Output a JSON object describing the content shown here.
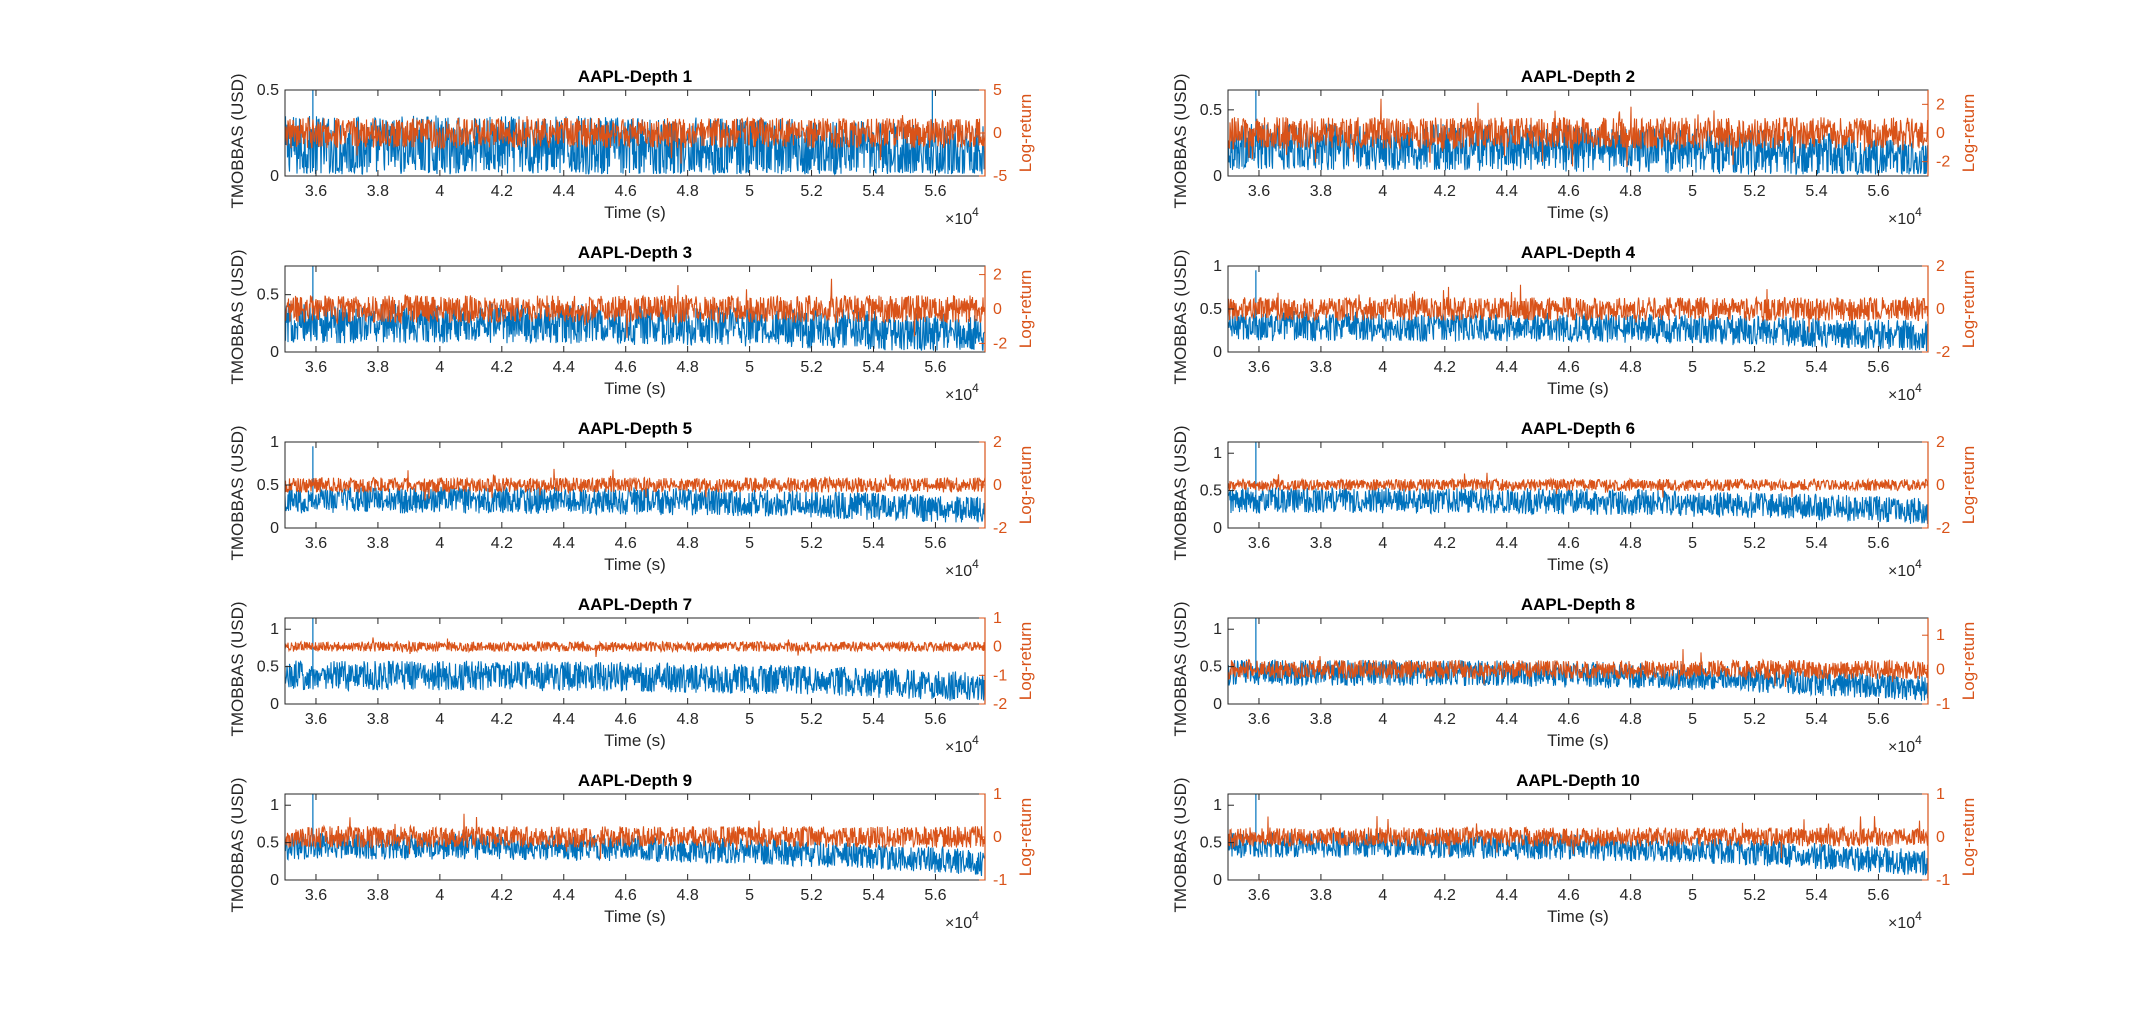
{
  "figure": {
    "layout": "5 rows x 2 columns of dual-axis time-series panels"
  },
  "colors": {
    "left_series": "#0072BD",
    "right_series": "#D95319",
    "axis": "#262626"
  },
  "chart_data": [
    {
      "type": "line",
      "title": "AAPL-Depth 1",
      "xlabel": "Time (s)",
      "ylabel_left": "TMOBBAS (USD)",
      "ylabel_right": "Log-return",
      "xlim": [
        35000,
        57600
      ],
      "x_ticks": [
        36000,
        38000,
        40000,
        42000,
        44000,
        46000,
        48000,
        50000,
        52000,
        54000,
        56000
      ],
      "x_tick_labels": [
        "3.6",
        "3.8",
        "4",
        "4.2",
        "4.4",
        "4.6",
        "4.8",
        "5",
        "5.2",
        "5.4",
        "5.6"
      ],
      "x_exponent_base": "×10",
      "x_exponent_power": "4",
      "y_left_lim": [
        0,
        0.5
      ],
      "y_left_ticks": [
        0,
        0.5
      ],
      "y_left_tick_labels": [
        "0",
        "0.5"
      ],
      "y_right_lim": [
        -5,
        5
      ],
      "y_right_ticks": [
        -5,
        0,
        5
      ],
      "y_right_tick_labels": [
        "-5",
        "0",
        "5"
      ],
      "series": [
        {
          "name": "TMOBBAS (USD)",
          "axis": "left",
          "center_start": 0.17,
          "center_end": 0.11,
          "spread": 0.23,
          "spike_x": [
            35900,
            55900
          ],
          "spike_y": [
            0.5,
            0.5
          ]
        },
        {
          "name": "Log-return",
          "axis": "right",
          "center": 0.0,
          "spread": 3.5
        }
      ]
    },
    {
      "type": "line",
      "title": "AAPL-Depth 2",
      "xlabel": "Time (s)",
      "ylabel_left": "TMOBBAS (USD)",
      "ylabel_right": "Log-return",
      "xlim": [
        35000,
        57600
      ],
      "x_ticks": [
        36000,
        38000,
        40000,
        42000,
        44000,
        46000,
        48000,
        50000,
        52000,
        54000,
        56000
      ],
      "x_tick_labels": [
        "3.6",
        "3.8",
        "4",
        "4.2",
        "4.4",
        "4.6",
        "4.8",
        "5",
        "5.2",
        "5.4",
        "5.6"
      ],
      "x_exponent_base": "×10",
      "x_exponent_power": "4",
      "y_left_lim": [
        0,
        0.65
      ],
      "y_left_ticks": [
        0,
        0.5
      ],
      "y_left_tick_labels": [
        "0",
        "0.5"
      ],
      "y_right_lim": [
        -3,
        3
      ],
      "y_right_ticks": [
        -2,
        0,
        2
      ],
      "y_right_tick_labels": [
        "-2",
        "0",
        "2"
      ],
      "series": [
        {
          "name": "TMOBBAS (USD)",
          "axis": "left",
          "center_start": 0.22,
          "center_end": 0.12,
          "spread": 0.22,
          "spike_x": [
            35900
          ],
          "spike_y": [
            0.65
          ]
        },
        {
          "name": "Log-return",
          "axis": "right",
          "center": 0.0,
          "spread": 2.2
        }
      ]
    },
    {
      "type": "line",
      "title": "AAPL-Depth 3",
      "xlabel": "Time (s)",
      "ylabel_left": "TMOBBAS (USD)",
      "ylabel_right": "Log-return",
      "xlim": [
        35000,
        57600
      ],
      "x_ticks": [
        36000,
        38000,
        40000,
        42000,
        44000,
        46000,
        48000,
        50000,
        52000,
        54000,
        56000
      ],
      "x_tick_labels": [
        "3.6",
        "3.8",
        "4",
        "4.2",
        "4.4",
        "4.6",
        "4.8",
        "5",
        "5.2",
        "5.4",
        "5.6"
      ],
      "x_exponent_base": "×10",
      "x_exponent_power": "4",
      "y_left_lim": [
        0,
        0.75
      ],
      "y_left_ticks": [
        0,
        0.5
      ],
      "y_left_tick_labels": [
        "0",
        "0.5"
      ],
      "y_right_lim": [
        -2.5,
        2.5
      ],
      "y_right_ticks": [
        -2,
        0,
        2
      ],
      "y_right_tick_labels": [
        "-2",
        "0",
        "2"
      ],
      "series": [
        {
          "name": "TMOBBAS (USD)",
          "axis": "left",
          "center_start": 0.25,
          "center_end": 0.15,
          "spread": 0.22,
          "spike_x": [
            35900
          ],
          "spike_y": [
            0.75
          ]
        },
        {
          "name": "Log-return",
          "axis": "right",
          "center": 0.0,
          "spread": 1.6
        }
      ]
    },
    {
      "type": "line",
      "title": "AAPL-Depth 4",
      "xlabel": "Time (s)",
      "ylabel_left": "TMOBBAS (USD)",
      "ylabel_right": "Log-return",
      "xlim": [
        35000,
        57600
      ],
      "x_ticks": [
        36000,
        38000,
        40000,
        42000,
        44000,
        46000,
        48000,
        50000,
        52000,
        54000,
        56000
      ],
      "x_tick_labels": [
        "3.6",
        "3.8",
        "4",
        "4.2",
        "4.4",
        "4.6",
        "4.8",
        "5",
        "5.2",
        "5.4",
        "5.6"
      ],
      "x_exponent_base": "×10",
      "x_exponent_power": "4",
      "y_left_lim": [
        0,
        1
      ],
      "y_left_ticks": [
        0,
        0.5,
        1
      ],
      "y_left_tick_labels": [
        "0",
        "0.5",
        "1"
      ],
      "y_right_lim": [
        -2,
        2
      ],
      "y_right_ticks": [
        -2,
        0,
        2
      ],
      "y_right_tick_labels": [
        "-2",
        "0",
        "2"
      ],
      "series": [
        {
          "name": "TMOBBAS (USD)",
          "axis": "left",
          "center_start": 0.3,
          "center_end": 0.18,
          "spread": 0.22,
          "spike_x": [
            35900
          ],
          "spike_y": [
            0.95
          ]
        },
        {
          "name": "Log-return",
          "axis": "right",
          "center": 0.0,
          "spread": 1.1
        }
      ]
    },
    {
      "type": "line",
      "title": "AAPL-Depth 5",
      "xlabel": "Time (s)",
      "ylabel_left": "TMOBBAS (USD)",
      "ylabel_right": "Log-return",
      "xlim": [
        35000,
        57600
      ],
      "x_ticks": [
        36000,
        38000,
        40000,
        42000,
        44000,
        46000,
        48000,
        50000,
        52000,
        54000,
        56000
      ],
      "x_tick_labels": [
        "3.6",
        "3.8",
        "4",
        "4.2",
        "4.4",
        "4.6",
        "4.8",
        "5",
        "5.2",
        "5.4",
        "5.6"
      ],
      "x_exponent_base": "×10",
      "x_exponent_power": "4",
      "y_left_lim": [
        0,
        1
      ],
      "y_left_ticks": [
        0,
        0.5,
        1
      ],
      "y_left_tick_labels": [
        "0",
        "0.5",
        "1"
      ],
      "y_right_lim": [
        -2,
        2
      ],
      "y_right_ticks": [
        -2,
        0,
        2
      ],
      "y_right_tick_labels": [
        "-2",
        "0",
        "2"
      ],
      "series": [
        {
          "name": "TMOBBAS (USD)",
          "axis": "left",
          "center_start": 0.33,
          "center_end": 0.2,
          "spread": 0.2,
          "spike_x": [
            35900
          ],
          "spike_y": [
            0.95
          ]
        },
        {
          "name": "Log-return",
          "axis": "right",
          "center": 0.0,
          "spread": 0.7
        }
      ]
    },
    {
      "type": "line",
      "title": "AAPL-Depth 6",
      "xlabel": "Time (s)",
      "ylabel_left": "TMOBBAS (USD)",
      "ylabel_right": "Log-return",
      "xlim": [
        35000,
        57600
      ],
      "x_ticks": [
        36000,
        38000,
        40000,
        42000,
        44000,
        46000,
        48000,
        50000,
        52000,
        54000,
        56000
      ],
      "x_tick_labels": [
        "3.6",
        "3.8",
        "4",
        "4.2",
        "4.4",
        "4.6",
        "4.8",
        "5",
        "5.2",
        "5.4",
        "5.6"
      ],
      "x_exponent_base": "×10",
      "x_exponent_power": "4",
      "y_left_lim": [
        0,
        1.15
      ],
      "y_left_ticks": [
        0,
        0.5,
        1
      ],
      "y_left_tick_labels": [
        "0",
        "0.5",
        "1"
      ],
      "y_right_lim": [
        -2,
        2
      ],
      "y_right_ticks": [
        -2,
        0,
        2
      ],
      "y_right_tick_labels": [
        "-2",
        "0",
        "2"
      ],
      "series": [
        {
          "name": "TMOBBAS (USD)",
          "axis": "left",
          "center_start": 0.37,
          "center_end": 0.22,
          "spread": 0.22,
          "spike_x": [
            35900
          ],
          "spike_y": [
            1.15
          ]
        },
        {
          "name": "Log-return",
          "axis": "right",
          "center": 0.0,
          "spread": 0.55
        }
      ]
    },
    {
      "type": "line",
      "title": "AAPL-Depth 7",
      "xlabel": "Time (s)",
      "ylabel_left": "TMOBBAS (USD)",
      "ylabel_right": "Log-return",
      "xlim": [
        35000,
        57600
      ],
      "x_ticks": [
        36000,
        38000,
        40000,
        42000,
        44000,
        46000,
        48000,
        50000,
        52000,
        54000,
        56000
      ],
      "x_tick_labels": [
        "3.6",
        "3.8",
        "4",
        "4.2",
        "4.4",
        "4.6",
        "4.8",
        "5",
        "5.2",
        "5.4",
        "5.6"
      ],
      "x_exponent_base": "×10",
      "x_exponent_power": "4",
      "y_left_lim": [
        0,
        1.15
      ],
      "y_left_ticks": [
        0,
        0.5,
        1
      ],
      "y_left_tick_labels": [
        "0",
        "0.5",
        "1"
      ],
      "y_right_lim": [
        -2,
        1
      ],
      "y_right_ticks": [
        -2,
        -1,
        0,
        1
      ],
      "y_right_tick_labels": [
        "-2",
        "-1",
        "0",
        "1"
      ],
      "series": [
        {
          "name": "TMOBBAS (USD)",
          "axis": "left",
          "center_start": 0.38,
          "center_end": 0.22,
          "spread": 0.25,
          "spike_x": [
            35900
          ],
          "spike_y": [
            1.15
          ]
        },
        {
          "name": "Log-return",
          "axis": "right",
          "center": 0.0,
          "spread": 0.35
        }
      ]
    },
    {
      "type": "line",
      "title": "AAPL-Depth 8",
      "xlabel": "Time (s)",
      "ylabel_left": "TMOBBAS (USD)",
      "ylabel_right": "Log-return",
      "xlim": [
        35000,
        57600
      ],
      "x_ticks": [
        36000,
        38000,
        40000,
        42000,
        44000,
        46000,
        48000,
        50000,
        52000,
        54000,
        56000
      ],
      "x_tick_labels": [
        "3.6",
        "3.8",
        "4",
        "4.2",
        "4.4",
        "4.6",
        "4.8",
        "5",
        "5.2",
        "5.4",
        "5.6"
      ],
      "x_exponent_base": "×10",
      "x_exponent_power": "4",
      "y_left_lim": [
        0,
        1.15
      ],
      "y_left_ticks": [
        0,
        0.5,
        1
      ],
      "y_left_tick_labels": [
        "0",
        "0.5",
        "1"
      ],
      "y_right_lim": [
        -1,
        1.5
      ],
      "y_right_ticks": [
        -1,
        0,
        1
      ],
      "y_right_tick_labels": [
        "-1",
        "0",
        "1"
      ],
      "series": [
        {
          "name": "TMOBBAS (USD)",
          "axis": "left",
          "center_start": 0.42,
          "center_end": 0.2,
          "spread": 0.22,
          "spike_x": [
            35900
          ],
          "spike_y": [
            1.15
          ]
        },
        {
          "name": "Log-return",
          "axis": "right",
          "center": 0.0,
          "spread": 0.55
        }
      ]
    },
    {
      "type": "line",
      "title": "AAPL-Depth 9",
      "xlabel": "Time (s)",
      "ylabel_left": "TMOBBAS (USD)",
      "ylabel_right": "Log-return",
      "xlim": [
        35000,
        57600
      ],
      "x_ticks": [
        36000,
        38000,
        40000,
        42000,
        44000,
        46000,
        48000,
        50000,
        52000,
        54000,
        56000
      ],
      "x_tick_labels": [
        "3.6",
        "3.8",
        "4",
        "4.2",
        "4.4",
        "4.6",
        "4.8",
        "5",
        "5.2",
        "5.4",
        "5.6"
      ],
      "x_exponent_base": "×10",
      "x_exponent_power": "4",
      "y_left_lim": [
        0,
        1.15
      ],
      "y_left_ticks": [
        0,
        0.5,
        1
      ],
      "y_left_tick_labels": [
        "0",
        "0.5",
        "1"
      ],
      "y_right_lim": [
        -1,
        1
      ],
      "y_right_ticks": [
        -1,
        0,
        1
      ],
      "y_right_tick_labels": [
        "-1",
        "0",
        "1"
      ],
      "series": [
        {
          "name": "TMOBBAS (USD)",
          "axis": "left",
          "center_start": 0.45,
          "center_end": 0.22,
          "spread": 0.22,
          "spike_x": [
            35900
          ],
          "spike_y": [
            1.15
          ]
        },
        {
          "name": "Log-return",
          "axis": "right",
          "center": 0.0,
          "spread": 0.5
        }
      ]
    },
    {
      "type": "line",
      "title": "AAPL-Depth 10",
      "xlabel": "Time (s)",
      "ylabel_left": "TMOBBAS (USD)",
      "ylabel_right": "Log-return",
      "xlim": [
        35000,
        57600
      ],
      "x_ticks": [
        36000,
        38000,
        40000,
        42000,
        44000,
        46000,
        48000,
        50000,
        52000,
        54000,
        56000
      ],
      "x_tick_labels": [
        "3.6",
        "3.8",
        "4",
        "4.2",
        "4.4",
        "4.6",
        "4.8",
        "5",
        "5.2",
        "5.4",
        "5.6"
      ],
      "x_exponent_base": "×10",
      "x_exponent_power": "4",
      "y_left_lim": [
        0,
        1.15
      ],
      "y_left_ticks": [
        0,
        0.5,
        1
      ],
      "y_left_tick_labels": [
        "0",
        "0.5",
        "1"
      ],
      "y_right_lim": [
        -1,
        1
      ],
      "y_right_ticks": [
        -1,
        0,
        1
      ],
      "y_right_tick_labels": [
        "-1",
        "0",
        "1"
      ],
      "series": [
        {
          "name": "TMOBBAS (USD)",
          "axis": "left",
          "center_start": 0.47,
          "center_end": 0.22,
          "spread": 0.22,
          "spike_x": [
            35900
          ],
          "spike_y": [
            1.15
          ]
        },
        {
          "name": "Log-return",
          "axis": "right",
          "center": 0.0,
          "spread": 0.45
        }
      ]
    }
  ]
}
